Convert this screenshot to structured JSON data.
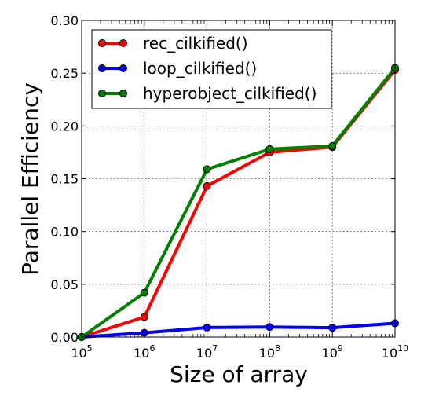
{
  "chart_data": {
    "type": "line",
    "xscale": "log",
    "xlabel": "Size of array",
    "ylabel": "Parallel Efficiency",
    "x": [
      100000,
      1000000,
      10000000,
      100000000,
      1000000000,
      10000000000
    ],
    "xticks": [
      {
        "base": "10",
        "exp": "5"
      },
      {
        "base": "10",
        "exp": "6"
      },
      {
        "base": "10",
        "exp": "7"
      },
      {
        "base": "10",
        "exp": "8"
      },
      {
        "base": "10",
        "exp": "9"
      },
      {
        "base": "10",
        "exp": "10"
      }
    ],
    "xlim": [
      100000,
      10000000000
    ],
    "ylim": [
      0,
      0.3
    ],
    "yticks": [
      "0.00",
      "0.05",
      "0.10",
      "0.15",
      "0.20",
      "0.25",
      "0.30"
    ],
    "grid": true,
    "legend_position": "top-left",
    "series": [
      {
        "name": "rec_cilkified()",
        "color": "#ff0000",
        "values": [
          0.0,
          0.019,
          0.143,
          0.175,
          0.18,
          0.253
        ]
      },
      {
        "name": "loop_cilkified()",
        "color": "#0000ff",
        "values": [
          0.0,
          0.004,
          0.009,
          0.0095,
          0.0088,
          0.013
        ]
      },
      {
        "name": "hyperobject_cilkified()",
        "color": "#007f00",
        "values": [
          0.0,
          0.042,
          0.159,
          0.178,
          0.181,
          0.255
        ]
      }
    ]
  }
}
